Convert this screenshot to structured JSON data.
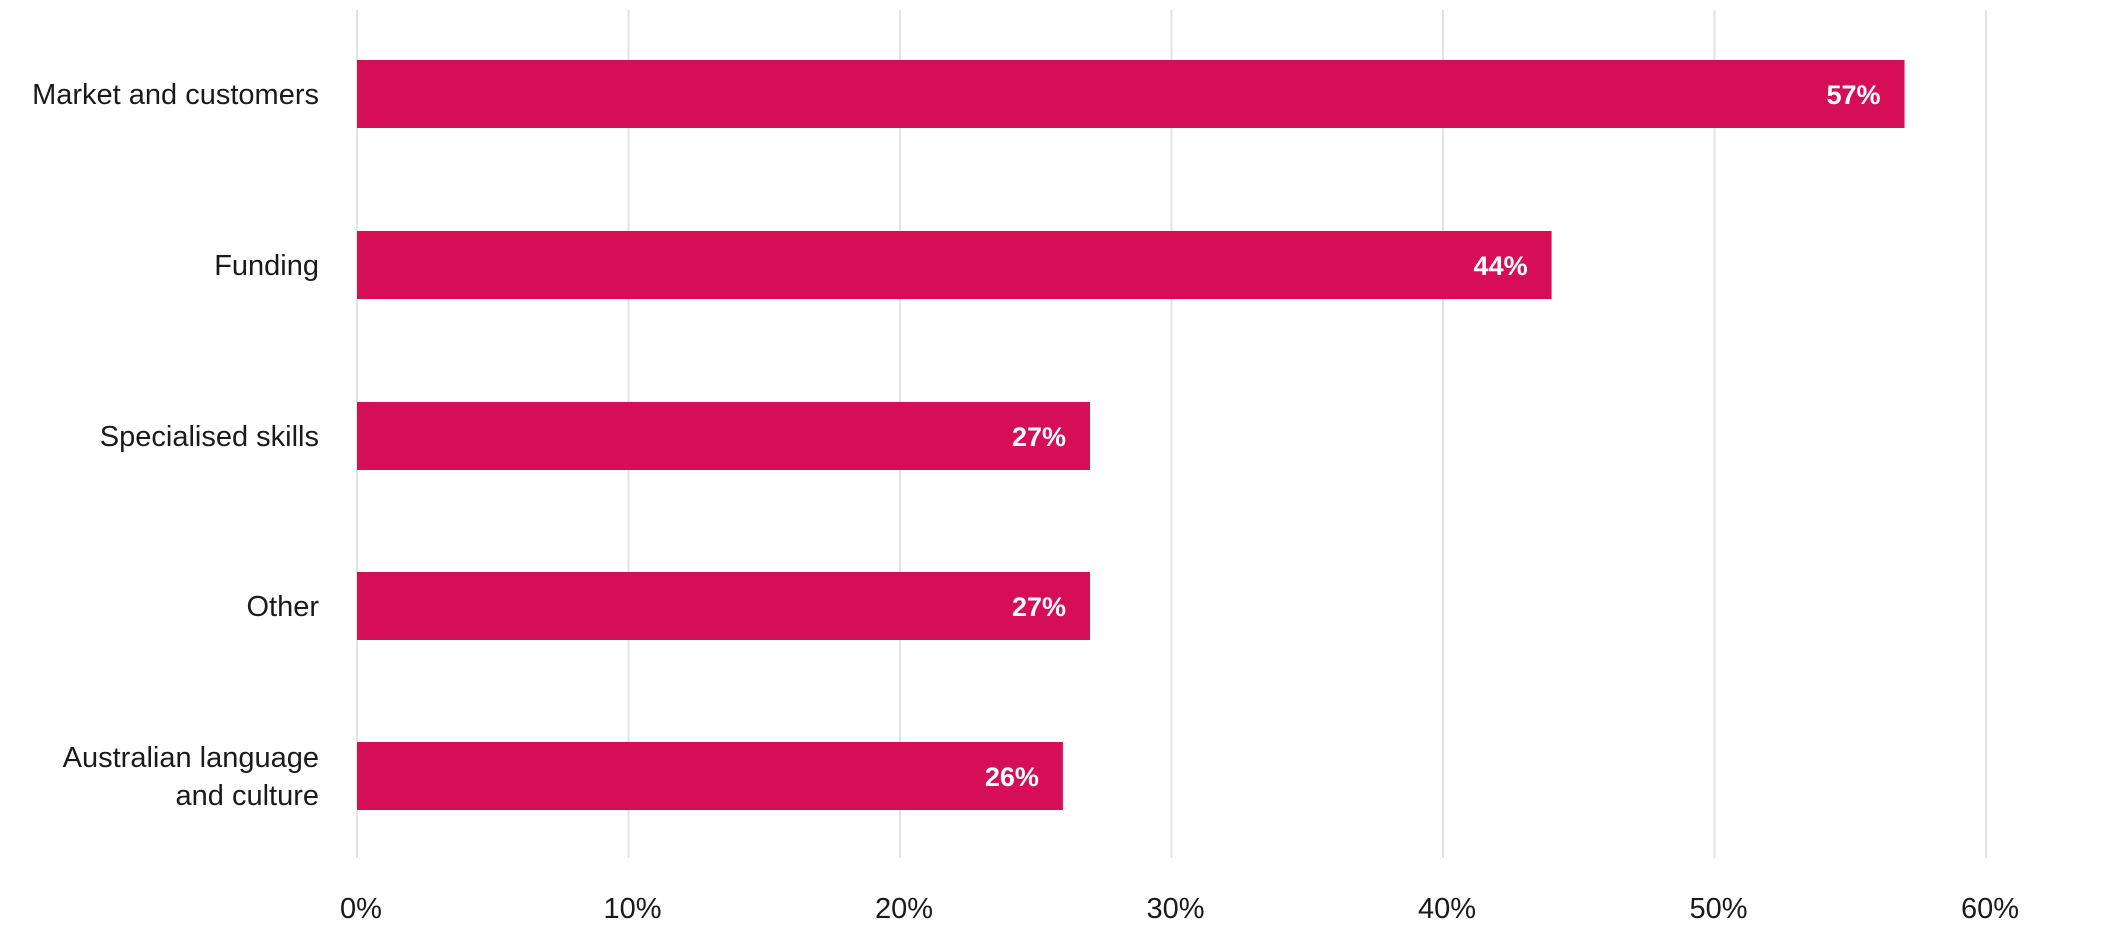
{
  "chart_data": {
    "type": "bar",
    "orientation": "horizontal",
    "categories": [
      [
        "Market and customers"
      ],
      [
        "Funding"
      ],
      [
        "Specialised skills"
      ],
      [
        "Other"
      ],
      [
        "Australian language",
        "and culture"
      ]
    ],
    "values": [
      57,
      44,
      27,
      27,
      26
    ],
    "data_labels": [
      "57%",
      "44%",
      "27%",
      "27%",
      "26%"
    ],
    "xticks": [
      "0%",
      "10%",
      "20%",
      "30%",
      "40%",
      "50%",
      "60%"
    ],
    "xlim": [
      0,
      60
    ],
    "grid": true,
    "bar_color": "#D60E55",
    "grid_color": "#e3e3e3",
    "title": "",
    "xlabel": "",
    "ylabel": ""
  }
}
